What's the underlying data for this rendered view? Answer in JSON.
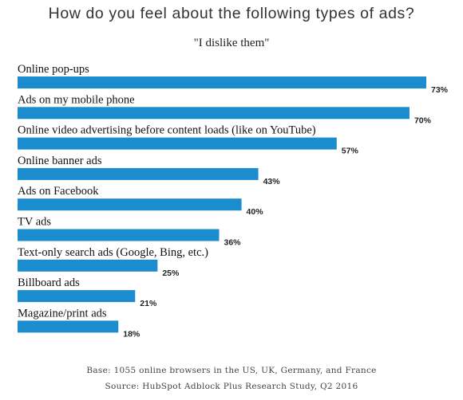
{
  "chart_data": {
    "type": "bar",
    "orientation": "horizontal",
    "title": "How do you feel about the following types of ads?",
    "subtitle": "\"I dislike them\"",
    "categories": [
      "Online pop-ups",
      "Ads on my mobile phone",
      "Online video advertising before content loads (like on YouTube)",
      "Online banner ads",
      "Ads on Facebook",
      "TV ads",
      "Text-only search ads (Google, Bing, etc.)",
      "Billboard ads",
      "Magazine/print ads"
    ],
    "values": [
      73,
      70,
      57,
      43,
      40,
      36,
      25,
      21,
      18
    ],
    "value_labels": [
      "73%",
      "70%",
      "57%",
      "43%",
      "40%",
      "36%",
      "25%",
      "21%",
      "18%"
    ],
    "unit": "%",
    "xlim": [
      0,
      100
    ],
    "grid": false,
    "legend": "none",
    "bar_color": "#1b8dcf",
    "footnotes": [
      "Base: 1055 online browsers in the US, UK, Germany, and France",
      "Source: HubSpot Adblock Plus Research Study, Q2 2016"
    ]
  }
}
